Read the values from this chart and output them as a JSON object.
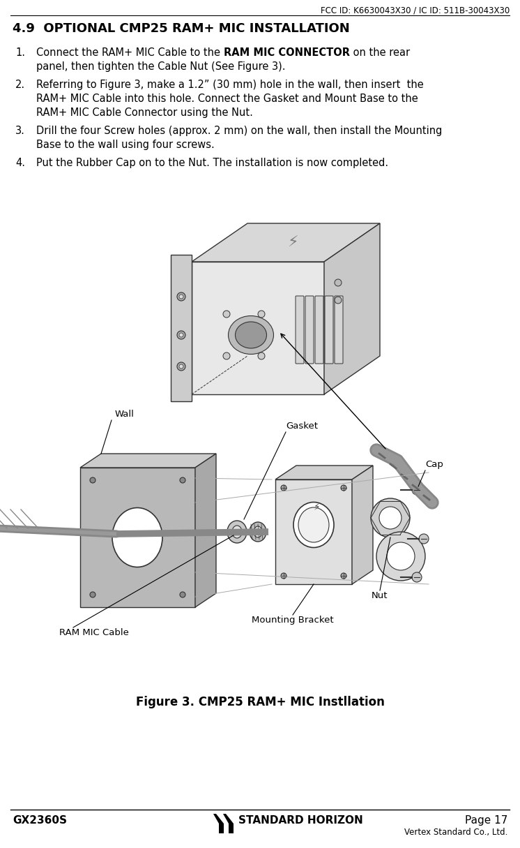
{
  "fcc_header": "FCC ID: K6630043X30 / IC ID: 511B-30043X30",
  "page_title": "4.9  OPTIONAL CMP25 RAM+ MIC INSTALLATION",
  "inst1_normal1": "Connect the RAM+ MIC Cable to the ",
  "inst1_bold": "RAM MIC CONNECTOR",
  "inst1_normal2": " on the rear",
  "inst1_line2": "panel, then tighten the Cable Nut (See Figure 3).",
  "inst2_line1": "Referring to Figure 3, make a 1.2” (30 mm) hole in the wall, then insert  the",
  "inst2_line2": "RAM+ MIC Cable into this hole. Connect the Gasket and Mount Base to the",
  "inst2_line3": "RAM+ MIC Cable Connector using the Nut.",
  "inst3_line1": "Drill the four Screw holes (approx. 2 mm) on the wall, then install the Mounting",
  "inst3_line2": "Base to the wall using four screws.",
  "inst4_line1": "Put the Rubber Cap on to the Nut. The installation is now completed.",
  "figure_caption": "Figure 3. CMP25 RAM+ MIC Instllation",
  "footer_left": "GX2360S",
  "footer_center": "STANDARD HORIZON",
  "footer_right": "Page 17",
  "footer_sub": "Vertex Standard Co., Ltd.",
  "bg_color": "#ffffff",
  "label_wall": "Wall",
  "label_gasket": "Gasket",
  "label_cap": "Cap",
  "label_cable": "RAM MIC Cable",
  "label_bracket": "Mounting Bracket",
  "label_nut": "Nut"
}
